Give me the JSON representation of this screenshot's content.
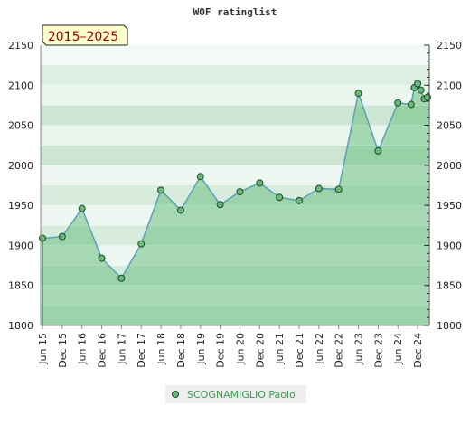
{
  "chart_data": {
    "type": "line",
    "title": "WOF ratinglist",
    "period_label": "2015–2025",
    "ylim": [
      1800,
      2150
    ],
    "yticks": [
      1800,
      1850,
      1900,
      1950,
      2000,
      2050,
      2100,
      2150
    ],
    "xlabels": [
      "Jun 15",
      "Dec 15",
      "Jun 16",
      "Dec 16",
      "Jun 17",
      "Dec 17",
      "Jun 18",
      "Dec 18",
      "Jun 19",
      "Dec 19",
      "Jun 20",
      "Dec 20",
      "Jun 21",
      "Dec 21",
      "Jun 22",
      "Dec 22",
      "Jun 23",
      "Dec 23",
      "Jun 24",
      "Dec 24"
    ],
    "grid": true,
    "legend_position": "bottom-center",
    "colors": {
      "line": "#5aa0b8",
      "area": "#6bbf80",
      "marker_fill": "#6ab87a",
      "marker_stroke": "#1e4a28",
      "legend_text": "#3a9a52",
      "period_text": "#a00000",
      "period_box": "#ffffcc"
    },
    "series": [
      {
        "name": "SCOGNAMIGLIO Paolo",
        "points": [
          {
            "x": "Jun 15",
            "y": 1909
          },
          {
            "x": "Dec 15",
            "y": 1911
          },
          {
            "x": "Jun 16",
            "y": 1946
          },
          {
            "x": "Dec 16",
            "y": 1884
          },
          {
            "x": "Jun 17",
            "y": 1859
          },
          {
            "x": "Dec 17",
            "y": 1902
          },
          {
            "x": "Jun 18",
            "y": 1969
          },
          {
            "x": "Dec 18",
            "y": 1944
          },
          {
            "x": "Jun 19",
            "y": 1986
          },
          {
            "x": "Dec 19",
            "y": 1951
          },
          {
            "x": "Jun 20",
            "y": 1967
          },
          {
            "x": "Dec 20",
            "y": 1978
          },
          {
            "x": "Jun 21",
            "y": 1960
          },
          {
            "x": "Dec 21",
            "y": 1956
          },
          {
            "x": "Jun 22",
            "y": 1971
          },
          {
            "x": "Dec 22",
            "y": 1970
          },
          {
            "x": "Jun 23",
            "y": 2090
          },
          {
            "x": "Dec 23",
            "y": 2018
          },
          {
            "x": "Jun 24",
            "y": 2078
          },
          {
            "x": "Oct 24",
            "y": 2076
          },
          {
            "x": "Nov 24",
            "y": 2097
          },
          {
            "x": "Dec 24",
            "y": 2102
          },
          {
            "x": "Jan 25",
            "y": 2094
          },
          {
            "x": "Feb 25",
            "y": 2083
          },
          {
            "x": "Mar 25",
            "y": 2085
          }
        ]
      }
    ]
  }
}
